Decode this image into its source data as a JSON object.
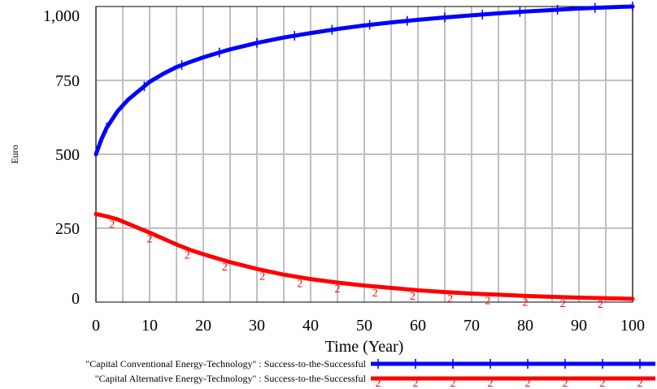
{
  "chart_data": {
    "type": "line",
    "ylabel": "Euro",
    "xlabel": "Time (Year)",
    "xlim": [
      0,
      100
    ],
    "ylim": [
      0,
      1000
    ],
    "x_ticks": [
      0,
      10,
      20,
      30,
      40,
      50,
      60,
      70,
      80,
      90,
      100
    ],
    "y_ticks": [
      0,
      250,
      500,
      750,
      1000
    ],
    "x_tick_labels": [
      "0",
      "10",
      "20",
      "30",
      "40",
      "50",
      "60",
      "70",
      "80",
      "90",
      "100"
    ],
    "y_tick_labels": [
      "0",
      "250",
      "500",
      "750",
      "1,000"
    ],
    "grid": true,
    "legend_position": "bottom",
    "x": [
      0,
      1,
      2,
      4,
      6,
      8,
      10,
      12.5,
      15,
      17.5,
      20,
      25,
      30,
      35,
      40,
      45,
      50,
      55,
      60,
      65,
      70,
      75,
      80,
      85,
      90,
      95,
      100
    ],
    "series": [
      {
        "name": "\"Capital Conventional Energy-Technology\" : Success-to-the-Successful",
        "color": "#0000ff",
        "marker": "1",
        "values": [
          500,
          550,
          590,
          645,
          685,
          715,
          745,
          772,
          795,
          812,
          828,
          855,
          877,
          895,
          910,
          924,
          936,
          946,
          955,
          963,
          970,
          977,
          983,
          988,
          993,
          997,
          1000
        ]
      },
      {
        "name": "\"Capital Alternative Energy-Technology\" : Success-to-the-Successful",
        "color": "#ff0000",
        "marker": "2",
        "values": [
          298,
          294,
          290,
          280,
          265,
          250,
          235,
          215,
          195,
          177,
          162,
          135,
          112,
          93,
          78,
          66,
          56,
          48,
          40,
          34,
          29,
          25,
          21,
          18,
          15,
          13,
          11
        ]
      }
    ]
  }
}
